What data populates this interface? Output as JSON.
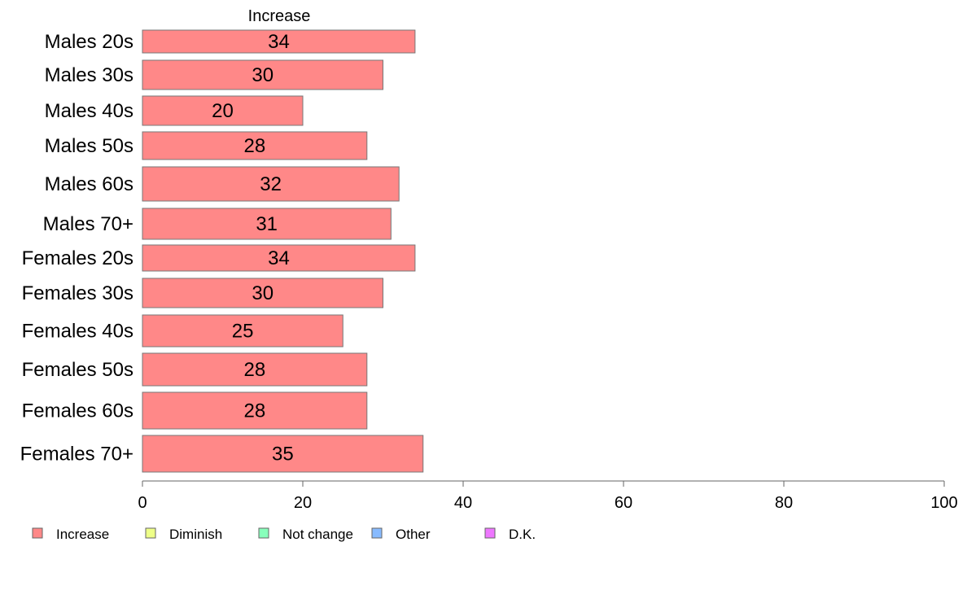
{
  "chart_data": {
    "type": "bar",
    "orientation": "horizontal",
    "series_title": "Increase",
    "categories": [
      "Males 20s",
      "Males 30s",
      "Males 40s",
      "Males 50s",
      "Males 60s",
      "Males 70+",
      "Females 20s",
      "Females 30s",
      "Females 40s",
      "Females 50s",
      "Females 60s",
      "Females 70+"
    ],
    "values": [
      34,
      30,
      20,
      28,
      32,
      31,
      34,
      30,
      25,
      28,
      28,
      35
    ],
    "xlim": [
      0,
      100
    ],
    "xticks": [
      0,
      20,
      40,
      60,
      80,
      100
    ],
    "grid": false,
    "legend_position": "bottom-left",
    "legend": [
      {
        "label": "Increase",
        "color": "#ff8888"
      },
      {
        "label": "Diminish",
        "color": "#eeff88"
      },
      {
        "label": "Not change",
        "color": "#88ffbb"
      },
      {
        "label": "Other",
        "color": "#88bbff"
      },
      {
        "label": "D.K.",
        "color": "#ee77ff"
      }
    ],
    "bar_color": "#ff8888"
  }
}
